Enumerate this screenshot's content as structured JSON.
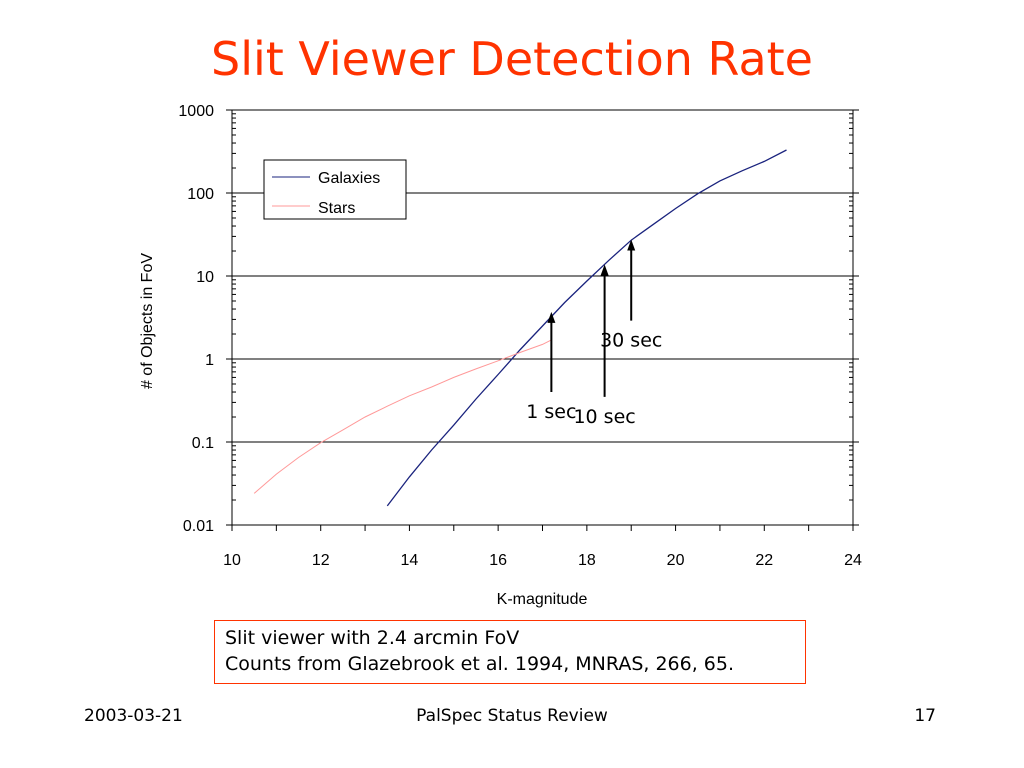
{
  "slide": {
    "title": "Slit Viewer Detection Rate",
    "note_line1": "Slit viewer with 2.4 arcmin FoV",
    "note_line2": "Counts from Glazebrook et al. 1994, MNRAS, 266, 65.",
    "footer_date": "2003-03-21",
    "footer_center": "PalSpec Status Review",
    "footer_page": "17"
  },
  "chart_data": {
    "type": "line",
    "xlabel": "K-magnitude",
    "ylabel": "# of Objects in FoV",
    "xlim": [
      10,
      24
    ],
    "ylim": [
      0.01,
      1000
    ],
    "yscale": "log",
    "grid": "horizontal major",
    "legend_position": "top-left",
    "x_tick_labels": [
      "10",
      "12",
      "14",
      "16",
      "18",
      "20",
      "22",
      "24"
    ],
    "y_tick_labels": [
      "0.01",
      "0.1",
      "1",
      "10",
      "100",
      "1000"
    ],
    "series": [
      {
        "name": "Galaxies",
        "color": "#1a237e",
        "x": [
          13.5,
          14.0,
          14.5,
          15.0,
          15.5,
          16.0,
          16.5,
          17.0,
          17.5,
          18.0,
          18.5,
          19.0,
          19.5,
          20.0,
          20.5,
          21.0,
          21.5,
          22.0,
          22.5
        ],
        "y": [
          0.017,
          0.038,
          0.08,
          0.16,
          0.33,
          0.65,
          1.3,
          2.5,
          4.8,
          8.7,
          15.5,
          27,
          42,
          65,
          98,
          140,
          185,
          240,
          330
        ]
      },
      {
        "name": "Stars",
        "color": "#ff9999",
        "x": [
          10.5,
          11.0,
          11.5,
          12.0,
          12.5,
          13.0,
          13.5,
          14.0,
          14.5,
          15.0,
          15.5,
          16.0,
          16.5,
          17.0,
          17.2
        ],
        "y": [
          0.024,
          0.041,
          0.065,
          0.098,
          0.14,
          0.2,
          0.27,
          0.36,
          0.46,
          0.6,
          0.76,
          0.95,
          1.2,
          1.5,
          1.7
        ]
      }
    ],
    "annotations": [
      {
        "text": "1 sec",
        "x": 17.2,
        "y": 3.5
      },
      {
        "text": "10 sec",
        "x": 18.4,
        "y": 13
      },
      {
        "text": "30 sec",
        "x": 19.0,
        "y": 26
      }
    ]
  }
}
